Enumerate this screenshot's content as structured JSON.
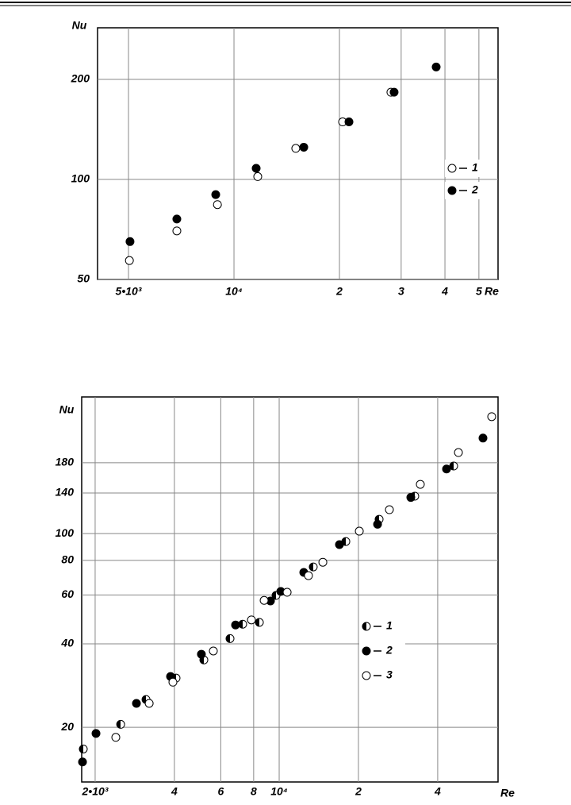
{
  "chart_data": [
    {
      "type": "scatter",
      "xlabel": "Re",
      "ylabel": "Nu",
      "xscale": "log",
      "yscale": "log",
      "grid": true,
      "legend": "right",
      "xlim": [
        4080,
        56700
      ],
      "ylim": [
        50,
        286
      ],
      "xticks": [
        {
          "value": 5000,
          "label": "5•10³"
        },
        {
          "value": 10000,
          "label": "10⁴"
        },
        {
          "value": 20000,
          "label": "2"
        },
        {
          "value": 30000,
          "label": "3"
        },
        {
          "value": 40000,
          "label": "4"
        },
        {
          "value": 50000,
          "label": "5"
        }
      ],
      "yticks": [
        50,
        100,
        200
      ],
      "series": [
        {
          "name": "1",
          "color": "#000000",
          "marker": "open",
          "x": [
            5030,
            6870,
            8970,
            11690,
            15010,
            20420,
            28050
          ],
          "values": [
            57,
            70,
            84,
            102,
            124,
            149,
            183
          ]
        },
        {
          "name": "2",
          "color": "#000000",
          "marker": "filled",
          "x": [
            5050,
            6870,
            8870,
            11570,
            15820,
            21290,
            28640,
            37760
          ],
          "values": [
            65,
            76,
            90,
            108,
            125,
            149,
            183,
            218
          ]
        }
      ]
    },
    {
      "type": "scatter",
      "xlabel": "Re",
      "ylabel": "Nu",
      "xscale": "log",
      "yscale": "log",
      "grid": true,
      "legend": "right",
      "xlim": [
        1778,
        67800
      ],
      "ylim": [
        12.7,
        311
      ],
      "xticks": [
        {
          "value": 2000,
          "label": "2•10³"
        },
        {
          "value": 4000,
          "label": "4"
        },
        {
          "value": 6000,
          "label": "6"
        },
        {
          "value": 8000,
          "label": "8"
        },
        {
          "value": 10000,
          "label": "10⁴"
        },
        {
          "value": 20000,
          "label": "2"
        },
        {
          "value": 40000,
          "label": "4"
        }
      ],
      "yticks": [
        20,
        40,
        60,
        80,
        100,
        140,
        180
      ],
      "series": [
        {
          "name": "1",
          "color": "#000000",
          "marker": "half",
          "x": [
            1803,
            2500,
            3120,
            4058,
            5175,
            6505,
            7267,
            8409,
            9727,
            13470,
            17910,
            23960,
            32730,
            45990
          ],
          "values": [
            16.7,
            20.5,
            25.2,
            30.1,
            35.0,
            41.8,
            47.1,
            47.8,
            59.8,
            75.8,
            93.6,
            112.6,
            136.4,
            175.2
          ]
        },
        {
          "name": "2",
          "color": "#000000",
          "marker": "filled",
          "x": [
            1791,
            2015,
            2870,
            3867,
            5065,
            6828,
            9266,
            10140,
            12400,
            16940,
            23640,
            31620,
            43210,
            59430
          ],
          "values": [
            15.0,
            19.0,
            24.4,
            30.5,
            36.7,
            46.8,
            57.1,
            61.8,
            72.4,
            91.2,
            108,
            135,
            171,
            221
          ]
        },
        {
          "name": "3",
          "color": "#000000",
          "marker": "open",
          "x": [
            2396,
            3208,
            3948,
            5623,
            7846,
            8767,
            10720,
            12920,
            14650,
            20150,
            26220,
            34360,
            47950,
            64150
          ],
          "values": [
            18.4,
            24.4,
            29.1,
            37.7,
            48.8,
            57.4,
            61.4,
            70.5,
            78.8,
            102,
            121.9,
            150.5,
            196,
            264
          ]
        }
      ]
    }
  ]
}
